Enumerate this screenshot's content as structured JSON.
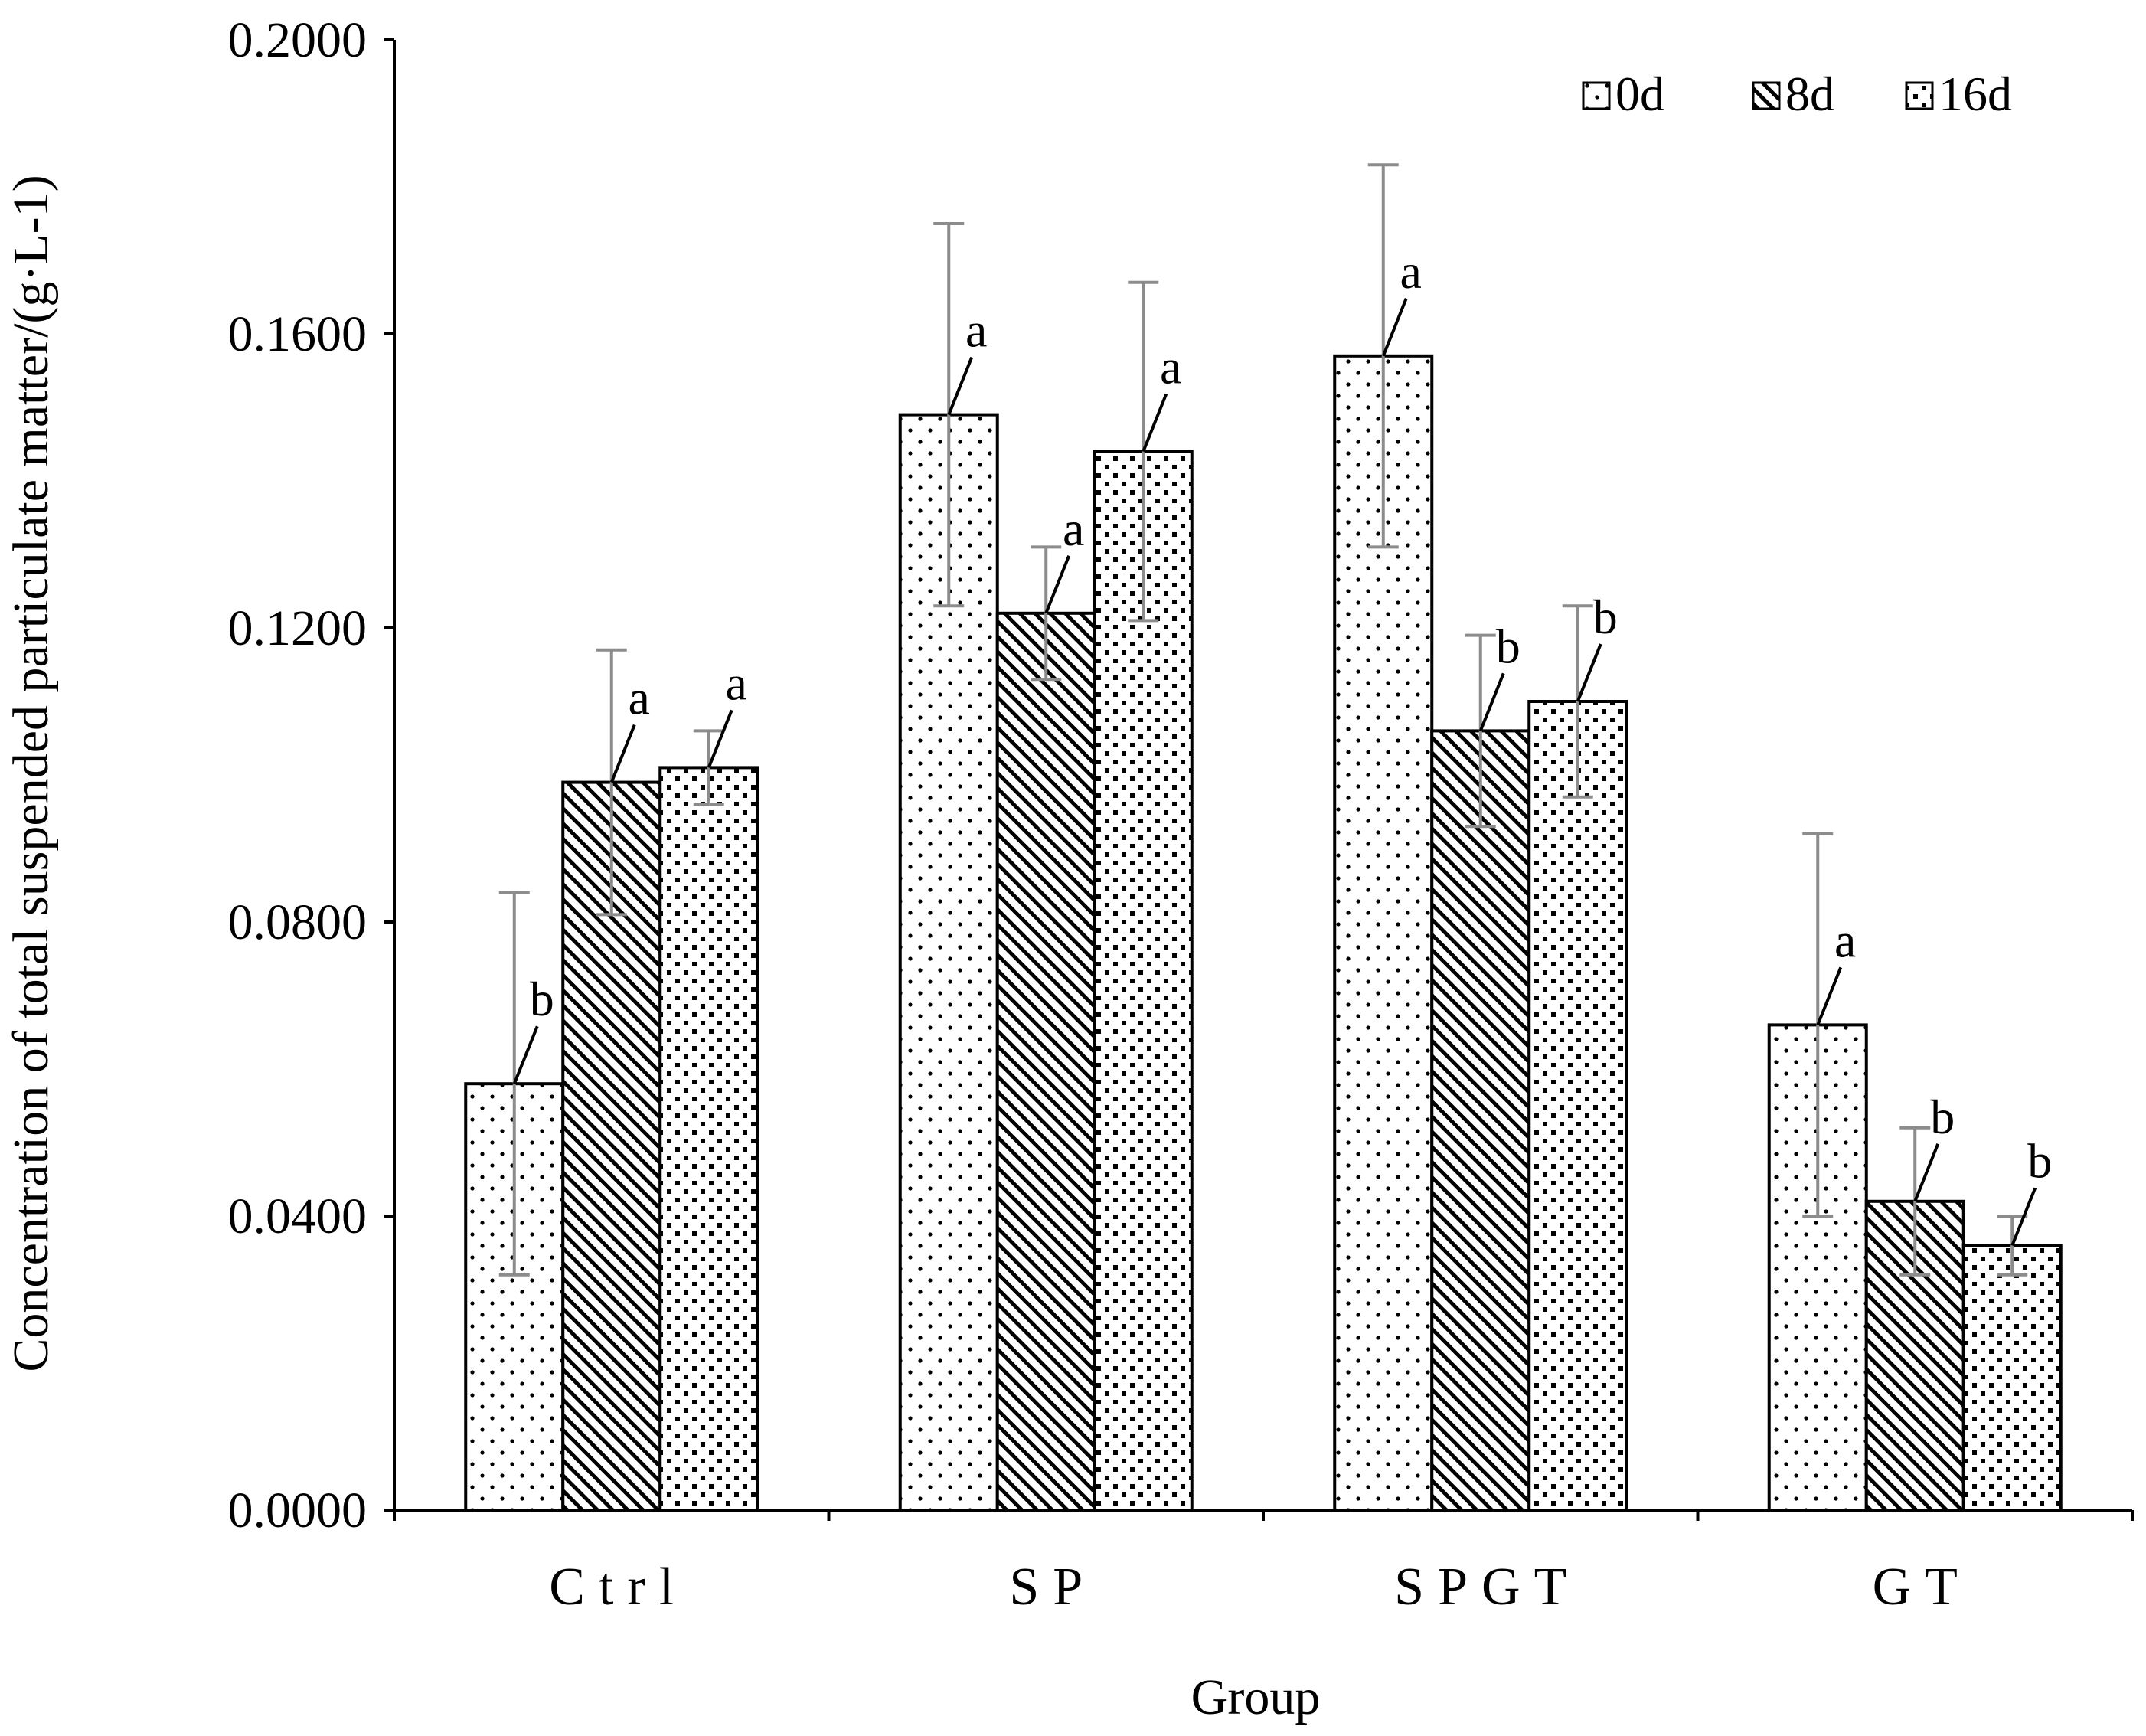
{
  "chart_data": {
    "type": "bar",
    "title": "",
    "xlabel": "Group",
    "ylabel": "Concentration of total suspended particulate  matter/(g·L-1)",
    "categories": [
      "Ctrl",
      "SP",
      "SPGT",
      "GT"
    ],
    "ylim": [
      0,
      0.2
    ],
    "yticks": [
      "0.0000",
      "0.0400",
      "0.0800",
      "0.1200",
      "0.1600",
      "0.2000"
    ],
    "legend_position": "top-right",
    "series": [
      {
        "name": "0d",
        "pattern": "dots",
        "values": [
          0.058,
          0.149,
          0.157,
          0.066
        ],
        "errors": [
          0.026,
          0.026,
          0.026,
          0.026
        ],
        "labels": [
          "b",
          "a",
          "a",
          "a"
        ]
      },
      {
        "name": "8d",
        "pattern": "diagonal",
        "values": [
          0.099,
          0.122,
          0.106,
          0.042
        ],
        "errors": [
          0.018,
          0.009,
          0.013,
          0.01
        ],
        "labels": [
          "a",
          "a",
          "b",
          "b"
        ]
      },
      {
        "name": "16d",
        "pattern": "checker",
        "values": [
          0.101,
          0.144,
          0.11,
          0.036
        ],
        "errors": [
          0.005,
          0.023,
          0.013,
          0.004
        ],
        "labels": [
          "a",
          "a",
          "b",
          "b"
        ]
      }
    ]
  }
}
